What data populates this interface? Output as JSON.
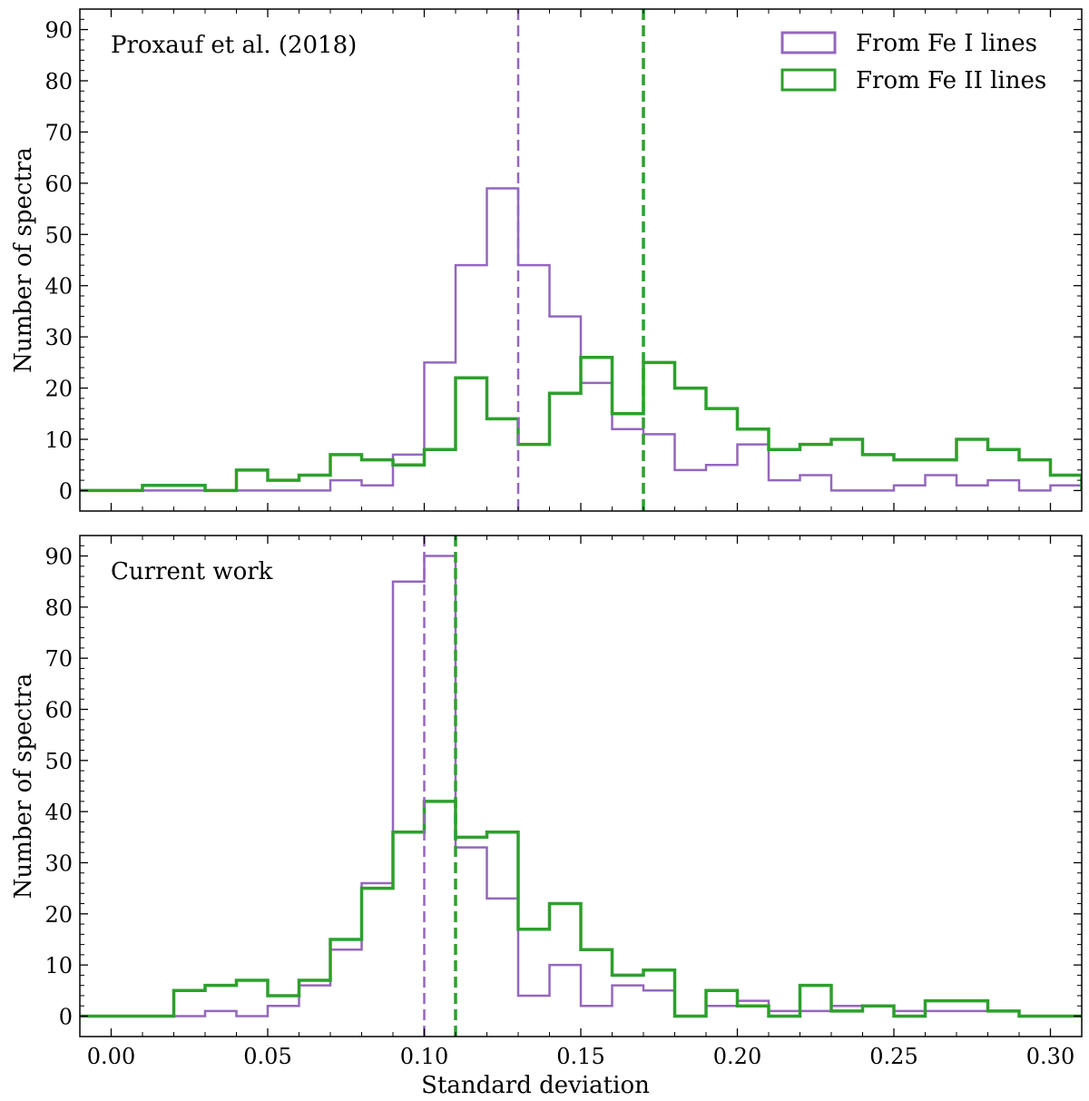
{
  "colors": {
    "fe1": "#9467bd",
    "fe2": "#2ca02c"
  },
  "chart_data": [
    {
      "type": "histogram",
      "annotation": "Proxauf et al. (2018)",
      "ylabel": "Number of spectra",
      "xlabel": "",
      "xlim": [
        -0.01,
        0.31
      ],
      "ylim": [
        -4,
        94
      ],
      "yticks": [
        0,
        10,
        20,
        30,
        40,
        50,
        60,
        70,
        80,
        90
      ],
      "xticks": [
        0.0,
        0.05,
        0.1,
        0.15,
        0.2,
        0.25,
        0.3
      ],
      "show_xtick_labels": false,
      "legend": {
        "position": "top-right",
        "entries": [
          "From Fe I lines",
          "From Fe II lines"
        ]
      },
      "bin_edges": [
        -0.01,
        0.0,
        0.01,
        0.02,
        0.03,
        0.04,
        0.05,
        0.06,
        0.07,
        0.08,
        0.09,
        0.1,
        0.11,
        0.12,
        0.13,
        0.14,
        0.15,
        0.16,
        0.17,
        0.18,
        0.19,
        0.2,
        0.21,
        0.22,
        0.23,
        0.24,
        0.25,
        0.26,
        0.27,
        0.28,
        0.29,
        0.3,
        0.31
      ],
      "series": [
        {
          "name": "From Fe I lines",
          "values": [
            0,
            0,
            0,
            0,
            0,
            0,
            0,
            0,
            2,
            1,
            7,
            25,
            44,
            59,
            44,
            34,
            21,
            12,
            11,
            4,
            5,
            9,
            2,
            3,
            0,
            0,
            1,
            3,
            1,
            2,
            0,
            1
          ],
          "mean_line": 0.13,
          "line_width": 2.5
        },
        {
          "name": "From Fe II lines",
          "values": [
            0,
            0,
            1,
            1,
            0,
            4,
            2,
            3,
            7,
            6,
            5,
            8,
            22,
            14,
            9,
            19,
            26,
            15,
            25,
            20,
            16,
            12,
            8,
            9,
            10,
            7,
            6,
            6,
            10,
            8,
            6,
            3
          ],
          "mean_line": 0.17,
          "line_width": 3.5
        }
      ]
    },
    {
      "type": "histogram",
      "annotation": "Current work",
      "ylabel": "Number of spectra",
      "xlabel": "Standard deviation",
      "xlim": [
        -0.01,
        0.31
      ],
      "ylim": [
        -4,
        94
      ],
      "yticks": [
        0,
        10,
        20,
        30,
        40,
        50,
        60,
        70,
        80,
        90
      ],
      "xticks": [
        0.0,
        0.05,
        0.1,
        0.15,
        0.2,
        0.25,
        0.3
      ],
      "xtick_labels": [
        "0.00",
        "0.05",
        "0.10",
        "0.15",
        "0.20",
        "0.25",
        "0.30"
      ],
      "show_xtick_labels": true,
      "bin_edges": [
        -0.01,
        0.0,
        0.01,
        0.02,
        0.03,
        0.04,
        0.05,
        0.06,
        0.07,
        0.08,
        0.09,
        0.1,
        0.11,
        0.12,
        0.13,
        0.14,
        0.15,
        0.16,
        0.17,
        0.18,
        0.19,
        0.2,
        0.21,
        0.22,
        0.23,
        0.24,
        0.25,
        0.26,
        0.27,
        0.28,
        0.29,
        0.3,
        0.31
      ],
      "series": [
        {
          "name": "From Fe I lines",
          "values": [
            0,
            0,
            0,
            0,
            1,
            0,
            2,
            6,
            13,
            26,
            85,
            90,
            33,
            23,
            4,
            10,
            2,
            6,
            5,
            0,
            2,
            3,
            1,
            1,
            2,
            2,
            1,
            1,
            1,
            1,
            0,
            0
          ],
          "mean_line": 0.1,
          "line_width": 2.5
        },
        {
          "name": "From Fe II lines",
          "values": [
            0,
            0,
            0,
            5,
            6,
            7,
            4,
            7,
            15,
            25,
            36,
            42,
            35,
            36,
            17,
            22,
            13,
            8,
            9,
            0,
            5,
            2,
            0,
            6,
            1,
            2,
            0,
            3,
            3,
            1,
            0,
            0
          ],
          "mean_line": 0.11,
          "line_width": 3.5
        }
      ]
    }
  ]
}
